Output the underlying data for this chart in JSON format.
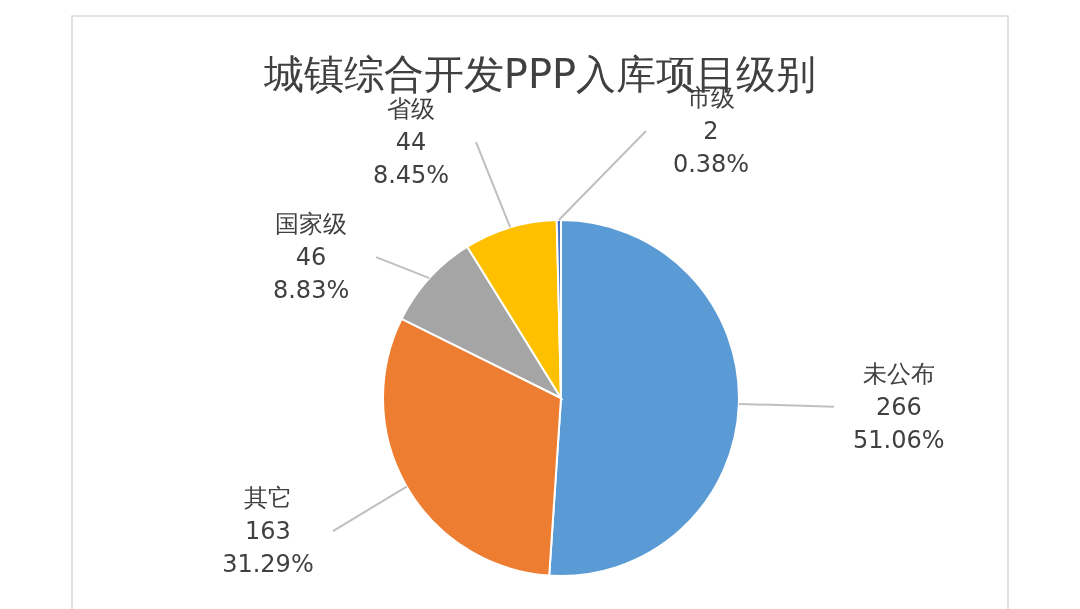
{
  "chart_data": {
    "type": "pie",
    "title": "城镇综合开发PPP入库项目级别",
    "categories": [
      "未公布",
      "其它",
      "国家级",
      "省级",
      "市级"
    ],
    "values": [
      266,
      163,
      46,
      44,
      2
    ],
    "colors": [
      "#5b9bd5",
      "#ed7d31",
      "#a5a5a5",
      "#ffc000",
      "#4472c4"
    ],
    "value_labels": [
      "266\n51.06%",
      "163\n31.29%",
      "46\n8.83%",
      "44\n8.45%",
      "2\n0.38%"
    ],
    "legend": false
  }
}
